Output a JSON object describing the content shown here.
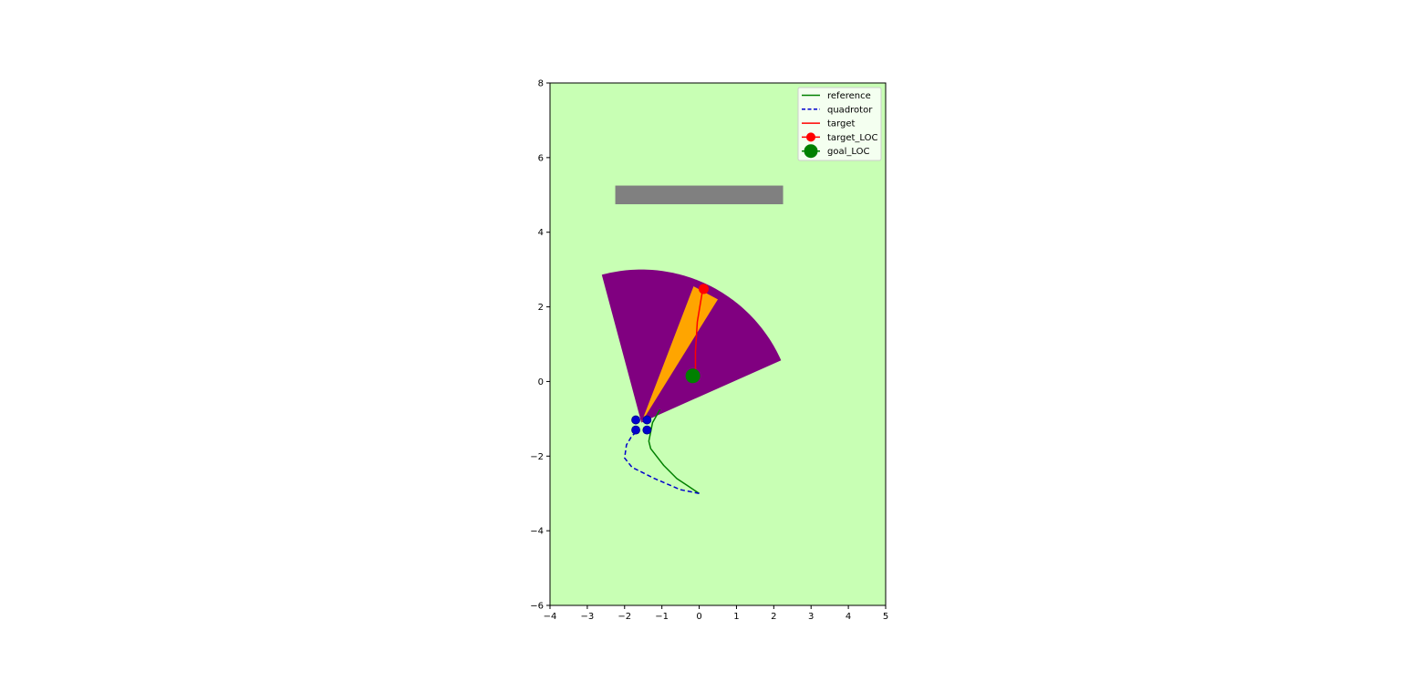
{
  "chart_data": {
    "type": "line",
    "title": "",
    "xlabel": "",
    "ylabel": "",
    "xlim": [
      -4,
      5
    ],
    "ylim": [
      -6,
      8
    ],
    "x_ticks": [
      -4,
      -3,
      -2,
      -1,
      0,
      1,
      2,
      3,
      4,
      5
    ],
    "y_ticks": [
      -6,
      -4,
      -2,
      0,
      2,
      4,
      6,
      8
    ],
    "grid": false,
    "legend_position": "top-right",
    "background_color": "#c8ffb4",
    "obstacle": {
      "x": [
        -2.25,
        2.25
      ],
      "y": [
        4.75,
        5.25
      ],
      "color": "#808080"
    },
    "sensor_wedge": {
      "apex": [
        -1.55,
        -1.1
      ],
      "radius": 4.1,
      "angle_start_deg": 24,
      "angle_end_deg": 105,
      "color": "#800080"
    },
    "target_beam": {
      "points": [
        [
          -1.55,
          -1.1
        ],
        [
          -0.15,
          2.55
        ],
        [
          0.5,
          2.2
        ]
      ],
      "color": "#ffa500"
    },
    "series": [
      {
        "name": "reference",
        "style": "solid",
        "color": "#008000",
        "points": [
          [
            0.0,
            -3.0
          ],
          [
            -0.3,
            -2.8
          ],
          [
            -0.6,
            -2.6
          ],
          [
            -0.95,
            -2.25
          ],
          [
            -1.3,
            -1.8
          ],
          [
            -1.35,
            -1.6
          ],
          [
            -1.25,
            -1.1
          ],
          [
            -1.05,
            -0.75
          ]
        ]
      },
      {
        "name": "quadrotor",
        "style": "dashed",
        "color": "#0000cd",
        "points": [
          [
            0.0,
            -3.0
          ],
          [
            -0.5,
            -2.9
          ],
          [
            -1.2,
            -2.6
          ],
          [
            -1.8,
            -2.3
          ],
          [
            -2.0,
            -2.05
          ],
          [
            -1.95,
            -1.7
          ],
          [
            -1.8,
            -1.45
          ],
          [
            -1.6,
            -1.3
          ]
        ]
      },
      {
        "name": "target",
        "style": "solid",
        "color": "#ff0000",
        "points": [
          [
            -0.1,
            0.0
          ],
          [
            -0.1,
            0.8
          ],
          [
            -0.05,
            1.6
          ],
          [
            0.05,
            2.2
          ],
          [
            0.1,
            2.5
          ]
        ]
      }
    ],
    "markers": [
      {
        "name": "target_LOC",
        "x": 0.12,
        "y": 2.48,
        "color": "#ff0000",
        "size": "small"
      },
      {
        "name": "goal_LOC",
        "x": -0.17,
        "y": 0.15,
        "color": "#008000",
        "size": "large"
      }
    ],
    "quadrotor_rotors": {
      "color": "#0000cd",
      "points": [
        [
          -1.7,
          -1.03
        ],
        [
          -1.4,
          -1.03
        ],
        [
          -1.7,
          -1.3
        ],
        [
          -1.4,
          -1.3
        ]
      ]
    },
    "legend_entries": [
      "reference",
      "quadrotor",
      "target",
      "target_LOC",
      "goal_LOC"
    ]
  }
}
